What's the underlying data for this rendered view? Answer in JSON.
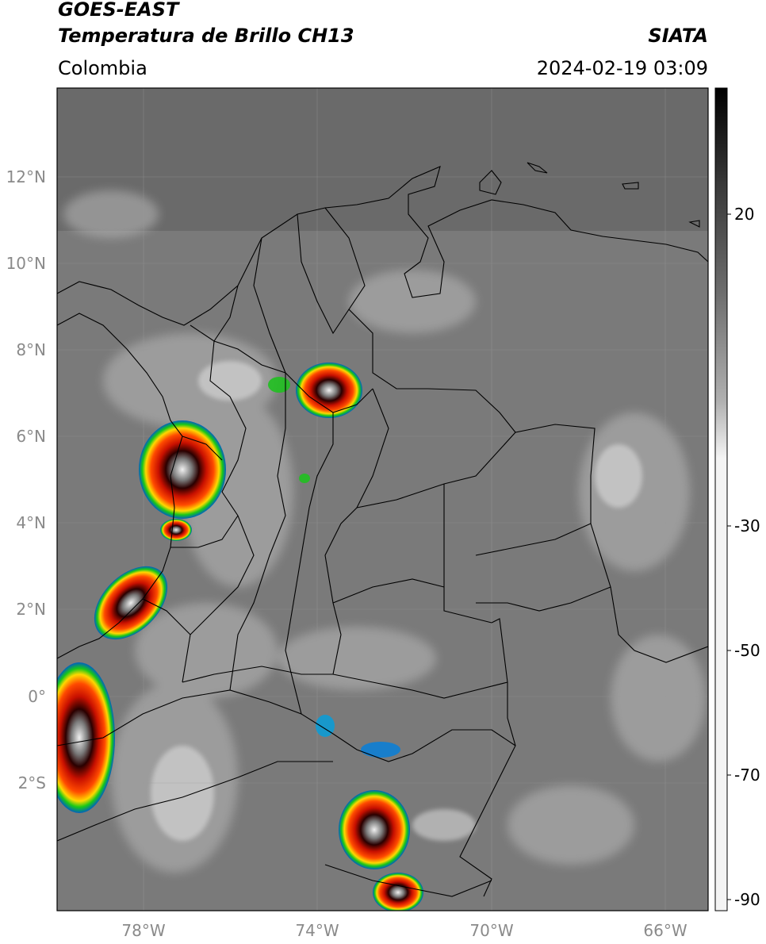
{
  "header": {
    "satellite": "GOES-EAST",
    "product": "Temperatura de Brillo CH13",
    "region": "Colombia",
    "org": "SIATA",
    "datetime": "2024-02-19 03:09"
  },
  "axes": {
    "lat_labels": [
      "12°N",
      "10°N",
      "8°N",
      "6°N",
      "4°N",
      "2°N",
      "0°",
      "2°S"
    ],
    "lon_labels": [
      "78°W",
      "74°W",
      "70°W",
      "66°W"
    ]
  },
  "colorbar": {
    "labels": [
      "20",
      "-30",
      "-50",
      "-70",
      "-90"
    ]
  },
  "colors": {
    "background_gray": "#7a7a7a",
    "border": "#000000",
    "gridline": "#9a9a9a"
  }
}
